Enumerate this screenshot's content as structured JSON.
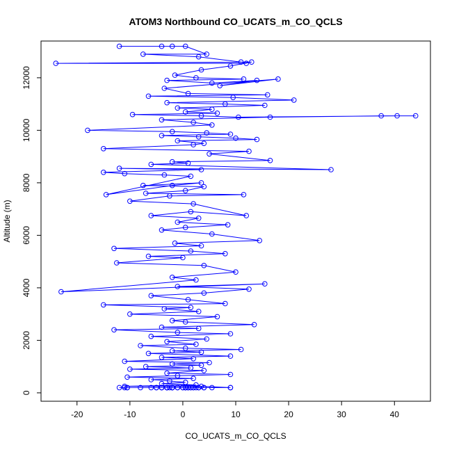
{
  "chart_data": {
    "type": "line",
    "title": "ATOM3 Northbound CO_UCATS_m_CO_QCLS",
    "xlabel": "CO_UCATS_m_CO_QCLS",
    "ylabel": "Altitude (m)",
    "xlim": [
      -26.8,
      46.8
    ],
    "ylim": [
      -320,
      13400
    ],
    "xticks": [
      -20,
      -10,
      0,
      10,
      20,
      30,
      40
    ],
    "yticks": [
      0,
      2000,
      4000,
      6000,
      8000,
      10000,
      12000
    ],
    "series_color": "#0000ff",
    "marker": "open-circle",
    "grid": false,
    "legend": "none",
    "series": [
      {
        "x": [
          -12.0,
          -4.0,
          -2.0,
          0.5,
          4.5,
          -7.5,
          3.0,
          11.0,
          12.0,
          -24.0,
          13.0,
          9.0,
          3.5,
          -1.5,
          2.5,
          11.5,
          -3.0,
          5.5,
          14.0,
          7.0,
          18.0,
          -3.5,
          1.0,
          16.0,
          -6.5,
          9.5,
          21.0,
          -3.0,
          8.0,
          15.5,
          -1.0,
          5.5,
          0.5,
          6.5,
          -9.5,
          3.5,
          10.5,
          40.5,
          44.0,
          37.5,
          16.5,
          -4.0,
          2.0,
          5.5,
          -18.0,
          -2.0,
          4.5,
          9.0,
          -4.0,
          3.0,
          10.0,
          14.0,
          -1.0,
          4.0,
          2.0,
          -15.0,
          12.5,
          5.0,
          16.5,
          -2.0,
          1.0,
          -6.0,
          28.0,
          -12.0,
          3.5,
          -15.0,
          -11.0,
          -3.5,
          1.5,
          -14.5,
          -2.0,
          3.5,
          -7.5,
          4.0,
          0.5,
          -7.0,
          11.5,
          -2.5,
          -10.0,
          2.0,
          12.0,
          1.5,
          -6.0,
          3.0,
          -1.0,
          8.5,
          0.5,
          -4.0,
          5.5,
          14.5,
          -1.5,
          3.5,
          -13.0,
          1.5,
          8.0,
          -6.5,
          0.0,
          -12.5,
          4.0,
          10.0,
          -2.0,
          2.5,
          -23.0,
          15.5,
          -1.0,
          12.5,
          4.0,
          -6.0,
          1.0,
          8.0,
          -15.0,
          1.5,
          -3.5,
          3.0,
          -10.0,
          6.5,
          -2.0,
          0.5,
          13.5,
          -4.0,
          3.0,
          -13.0,
          -1.0,
          9.0,
          -6.0,
          4.5,
          -3.0,
          2.5,
          -8.0,
          0.5,
          11.0,
          -2.0,
          3.5,
          -6.5,
          9.0,
          -4.0,
          2.0,
          -11.0,
          5.0,
          -2.0,
          3.5,
          -7.0,
          1.5,
          -10.0,
          4.0,
          -3.0,
          9.0,
          -1.0,
          -10.5,
          2.0,
          -6.0,
          -2.5,
          0.5,
          -4.0,
          2.5,
          -11.0,
          3.5,
          9.0,
          -2.0,
          0.5,
          -5.0,
          1.5,
          -3.0,
          5.5,
          -8.0,
          0.0,
          -11.0,
          2.0,
          -4.0,
          1.0,
          4.0,
          -2.0,
          -10.5,
          3.0,
          9.0,
          -1.0,
          -6.0,
          0.5,
          -3.0,
          2.0,
          -12.0,
          -4.0,
          1.0,
          -2.5,
          4.0,
          -5.0,
          0.5,
          -3.0,
          1.5,
          -1.0,
          2.5,
          -10.5,
          -4.0,
          0.0,
          -2.0,
          3.0,
          -3.0,
          1.0,
          -2.0,
          0.5
        ],
        "y": [
          13200,
          13200,
          13200,
          13200,
          12900,
          12900,
          12800,
          12600,
          12550,
          12550,
          12600,
          12450,
          12300,
          12100,
          12000,
          11950,
          11900,
          11800,
          11900,
          11700,
          11950,
          11600,
          11400,
          11350,
          11300,
          11250,
          11150,
          11050,
          11000,
          10950,
          10850,
          10800,
          10700,
          10650,
          10600,
          10550,
          10500,
          10550,
          10550,
          10550,
          10500,
          10400,
          10300,
          10200,
          10000,
          9950,
          9900,
          9850,
          9800,
          9750,
          9700,
          9650,
          9600,
          9500,
          9450,
          9300,
          9200,
          9100,
          8850,
          8800,
          8750,
          8700,
          8500,
          8550,
          8500,
          8400,
          8350,
          8300,
          8250,
          7550,
          7900,
          8000,
          7900,
          7850,
          7700,
          7600,
          7550,
          7500,
          7300,
          7200,
          6750,
          6900,
          6750,
          6650,
          6500,
          6400,
          6300,
          6200,
          6050,
          5800,
          5700,
          5600,
          5500,
          5400,
          5300,
          5200,
          5150,
          4950,
          4850,
          4600,
          4400,
          4300,
          3850,
          4150,
          4050,
          3950,
          3800,
          3700,
          3550,
          3400,
          3350,
          3250,
          3200,
          3100,
          3000,
          2900,
          2750,
          2700,
          2600,
          2500,
          2450,
          2400,
          2300,
          2250,
          2150,
          2050,
          1950,
          1850,
          1800,
          1700,
          1650,
          1600,
          1550,
          1500,
          1400,
          1350,
          1300,
          1200,
          1150,
          1100,
          1050,
          1000,
          950,
          900,
          850,
          750,
          700,
          650,
          600,
          550,
          500,
          450,
          400,
          350,
          300,
          250,
          250,
          200,
          200,
          200,
          200,
          200,
          200,
          200,
          200,
          200,
          200,
          200,
          200,
          200,
          200,
          200,
          200,
          200,
          200,
          200,
          200,
          200,
          200,
          200,
          200,
          200,
          200,
          200,
          200,
          200,
          200,
          200,
          200,
          200,
          200,
          200,
          200,
          200,
          200,
          200,
          200,
          200,
          200,
          200
        ]
      }
    ]
  }
}
